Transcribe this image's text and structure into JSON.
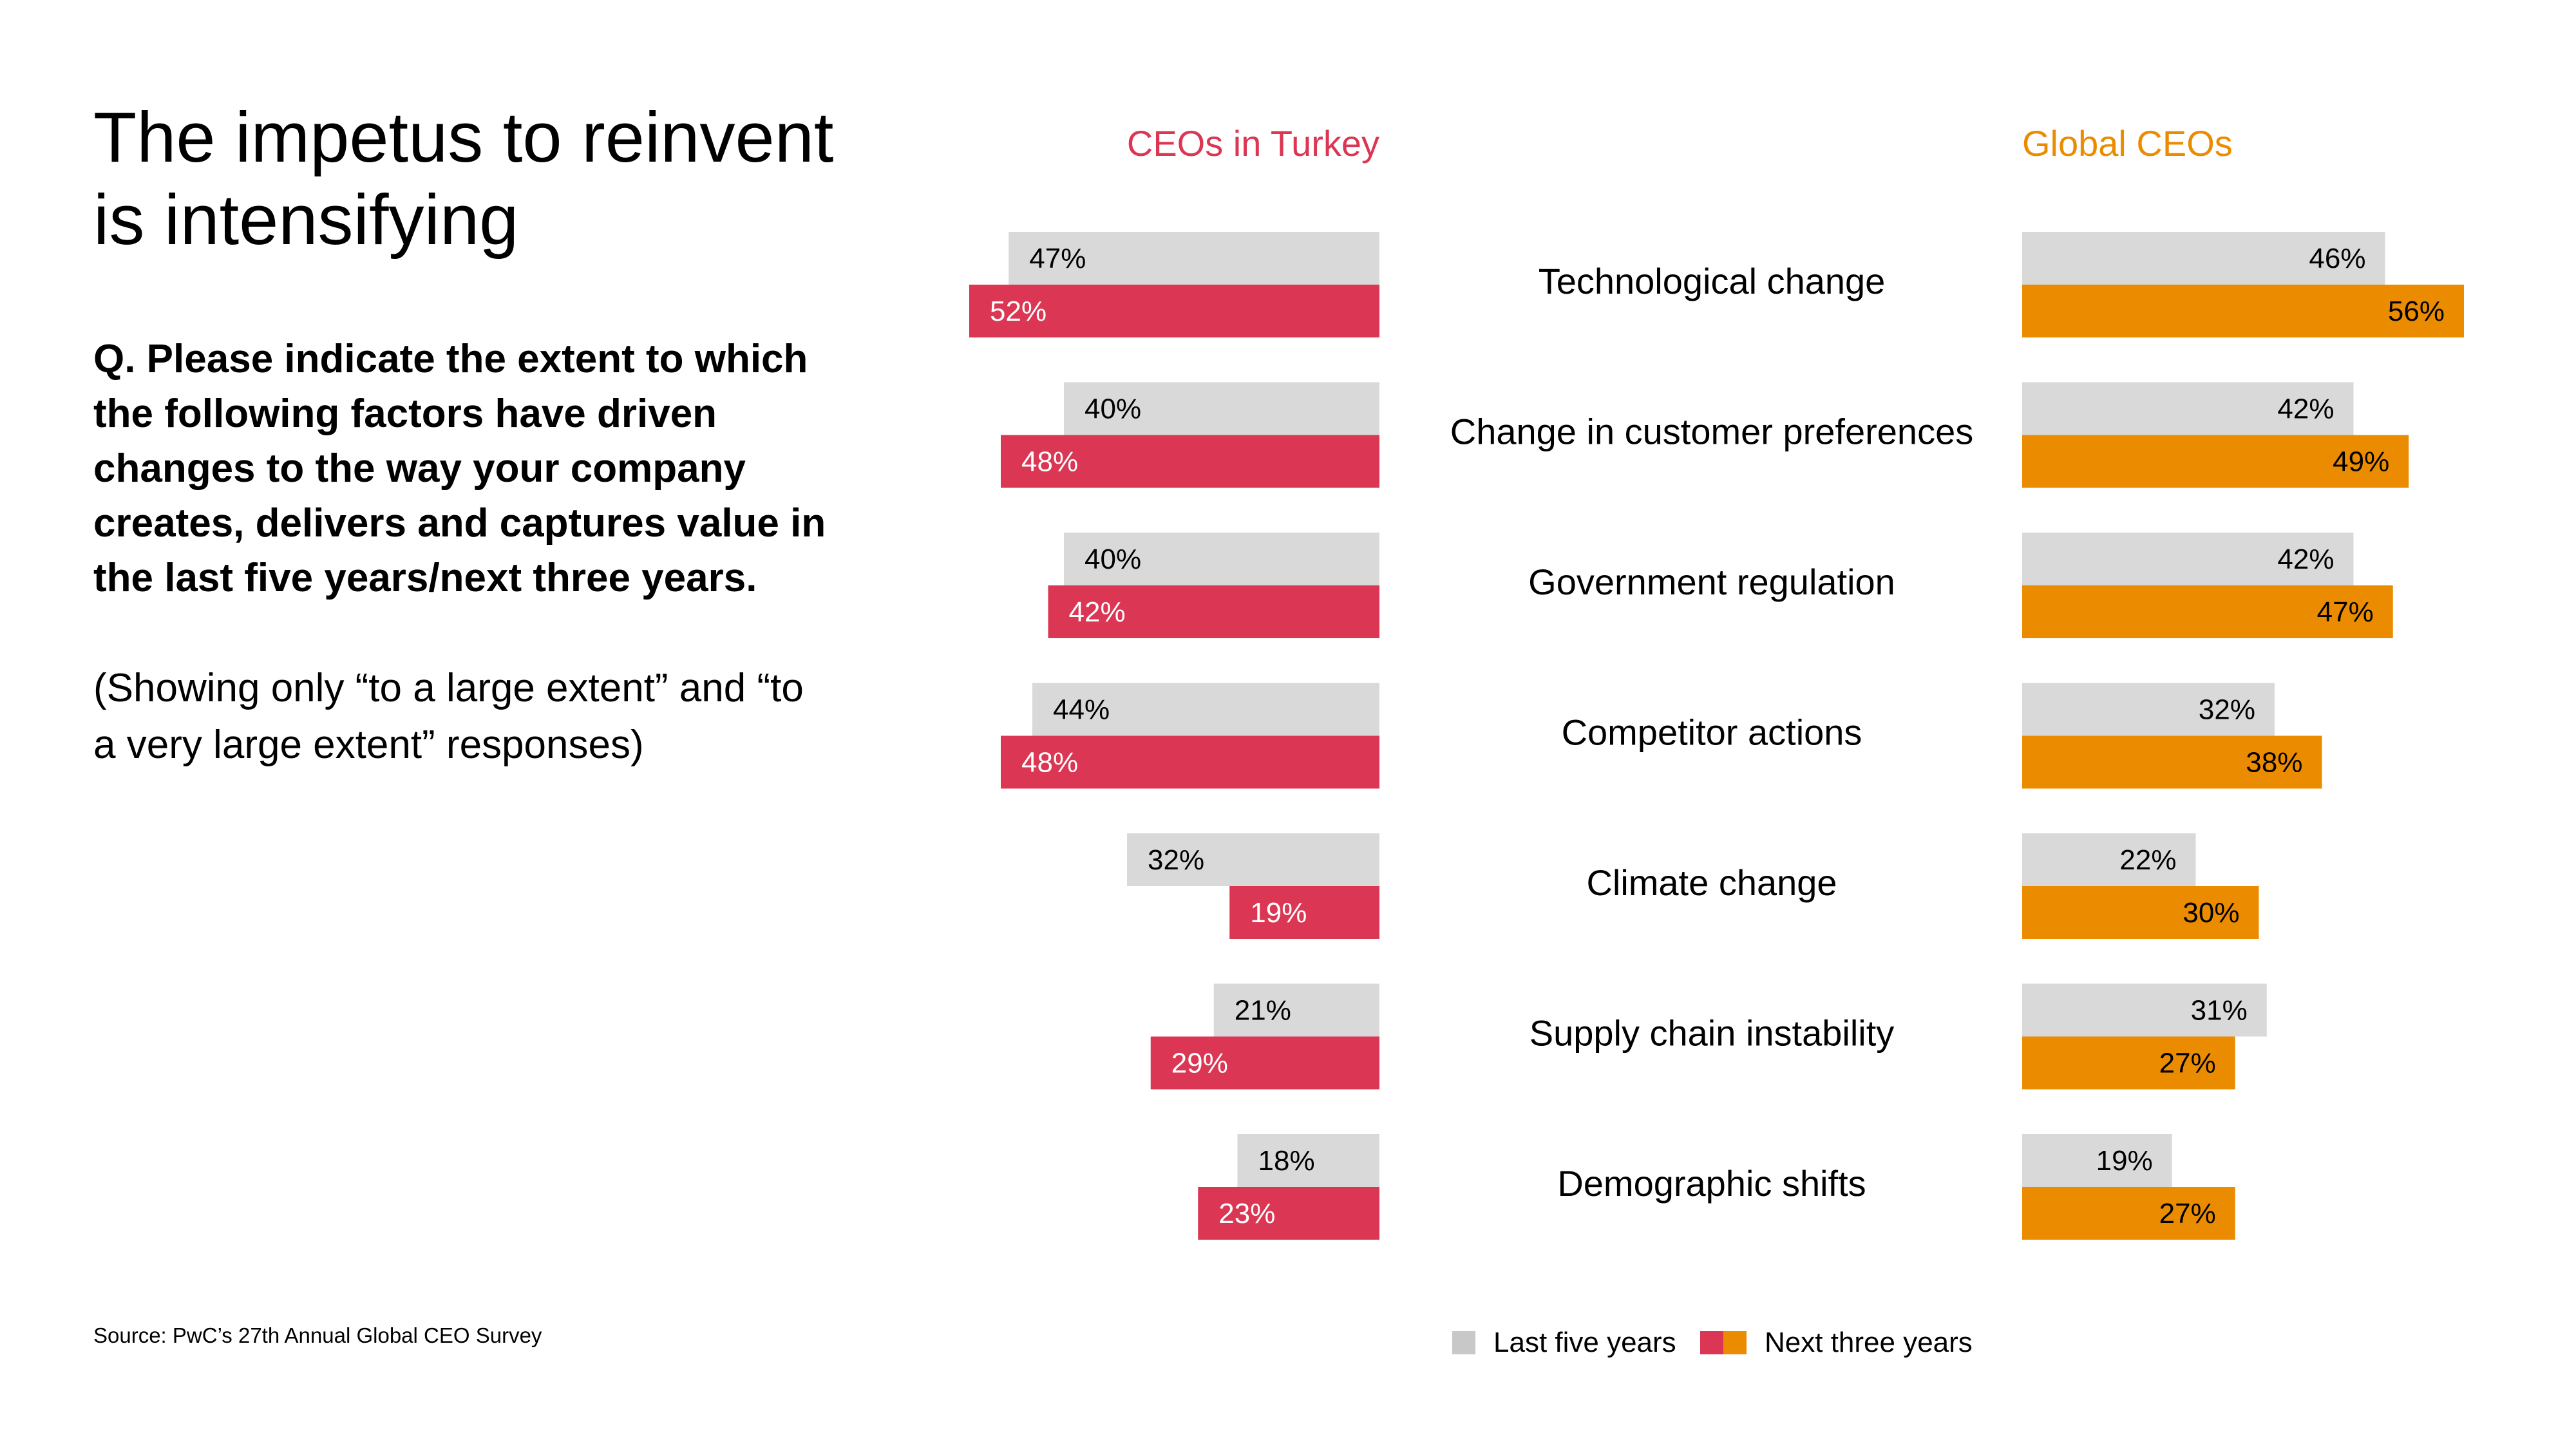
{
  "title": "The impetus to reinvent is intensifying",
  "question": "Q. Please indicate the extent to which the following factors have driven changes to the way your company creates, delivers and captures value in the last five years/next three years.",
  "note": "(Showing only “to a large extent” and “to a very large extent” responses)",
  "source": "Source: PwC’s 27th Annual Global CEO Survey",
  "colors": {
    "grey": "#d9d9d9",
    "turkey": "#db3654",
    "global": "#eb8c00",
    "legend_grey": "#c8c8c8"
  },
  "chart_data": {
    "type": "bar",
    "orientation": "horizontal",
    "unit": "%",
    "categories": [
      "Technological change",
      "Change in customer preferences",
      "Government regulation",
      "Competitor actions",
      "Climate change",
      "Supply chain instability",
      "Demographic shifts"
    ],
    "panels": [
      {
        "title": "CEOs in Turkey",
        "direction": "left",
        "series": [
          {
            "name": "Last five years",
            "values": [
              47,
              40,
              40,
              44,
              32,
              21,
              18
            ]
          },
          {
            "name": "Next three years",
            "values": [
              52,
              48,
              42,
              48,
              19,
              29,
              23
            ]
          }
        ]
      },
      {
        "title": "Global CEOs",
        "direction": "right",
        "series": [
          {
            "name": "Last five years",
            "values": [
              46,
              42,
              42,
              32,
              22,
              31,
              19
            ]
          },
          {
            "name": "Next three years",
            "values": [
              56,
              49,
              47,
              38,
              30,
              27,
              27
            ]
          }
        ]
      }
    ],
    "legend": [
      "Last five years",
      "Next three years"
    ]
  }
}
